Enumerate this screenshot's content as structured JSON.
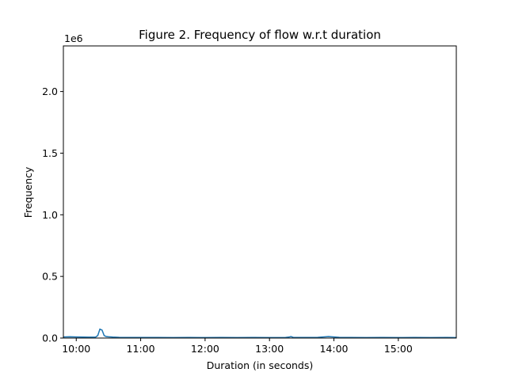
{
  "chart_data": {
    "type": "line",
    "title": "Figure 2. Frequency of flow w.r.t duration",
    "xlabel": "Duration (in seconds)",
    "ylabel": "Frequency",
    "y_offset_label": "1e6",
    "xlim": [
      "09:48",
      "15:54"
    ],
    "ylim": [
      0,
      2370000
    ],
    "x_ticks": [
      "10:00",
      "11:00",
      "12:00",
      "13:00",
      "14:00",
      "15:00"
    ],
    "y_ticks": [
      0,
      500000,
      1000000,
      1500000,
      2000000
    ],
    "y_tick_labels": [
      "0.0",
      "0.5",
      "1.0",
      "1.5",
      "2.0"
    ],
    "grid": false,
    "series": [
      {
        "color": "#1f77b4",
        "x": [
          "09:48",
          "09:54",
          "10:00",
          "10:06",
          "10:12",
          "10:18",
          "10:20",
          "10:22",
          "10:24",
          "10:26",
          "10:28",
          "10:30",
          "10:34",
          "10:40",
          "10:50",
          "11:00",
          "11:15",
          "11:30",
          "11:45",
          "12:00",
          "12:15",
          "12:30",
          "12:45",
          "13:00",
          "13:15",
          "13:18",
          "13:20",
          "13:22",
          "13:30",
          "13:45",
          "13:50",
          "13:55",
          "14:00",
          "14:05",
          "14:15",
          "14:30",
          "14:45",
          "15:00",
          "15:15",
          "15:30",
          "15:45",
          "15:54"
        ],
        "y": [
          9000,
          10000,
          9000,
          8000,
          7000,
          8000,
          20000,
          72000,
          65000,
          20000,
          12000,
          10000,
          8000,
          6000,
          5000,
          5000,
          5000,
          4000,
          5000,
          4000,
          5000,
          4000,
          5000,
          4000,
          5000,
          8000,
          12000,
          6000,
          5000,
          6000,
          9000,
          12000,
          9000,
          6000,
          5000,
          4000,
          5000,
          4000,
          5000,
          4000,
          5000,
          4000
        ]
      }
    ]
  }
}
